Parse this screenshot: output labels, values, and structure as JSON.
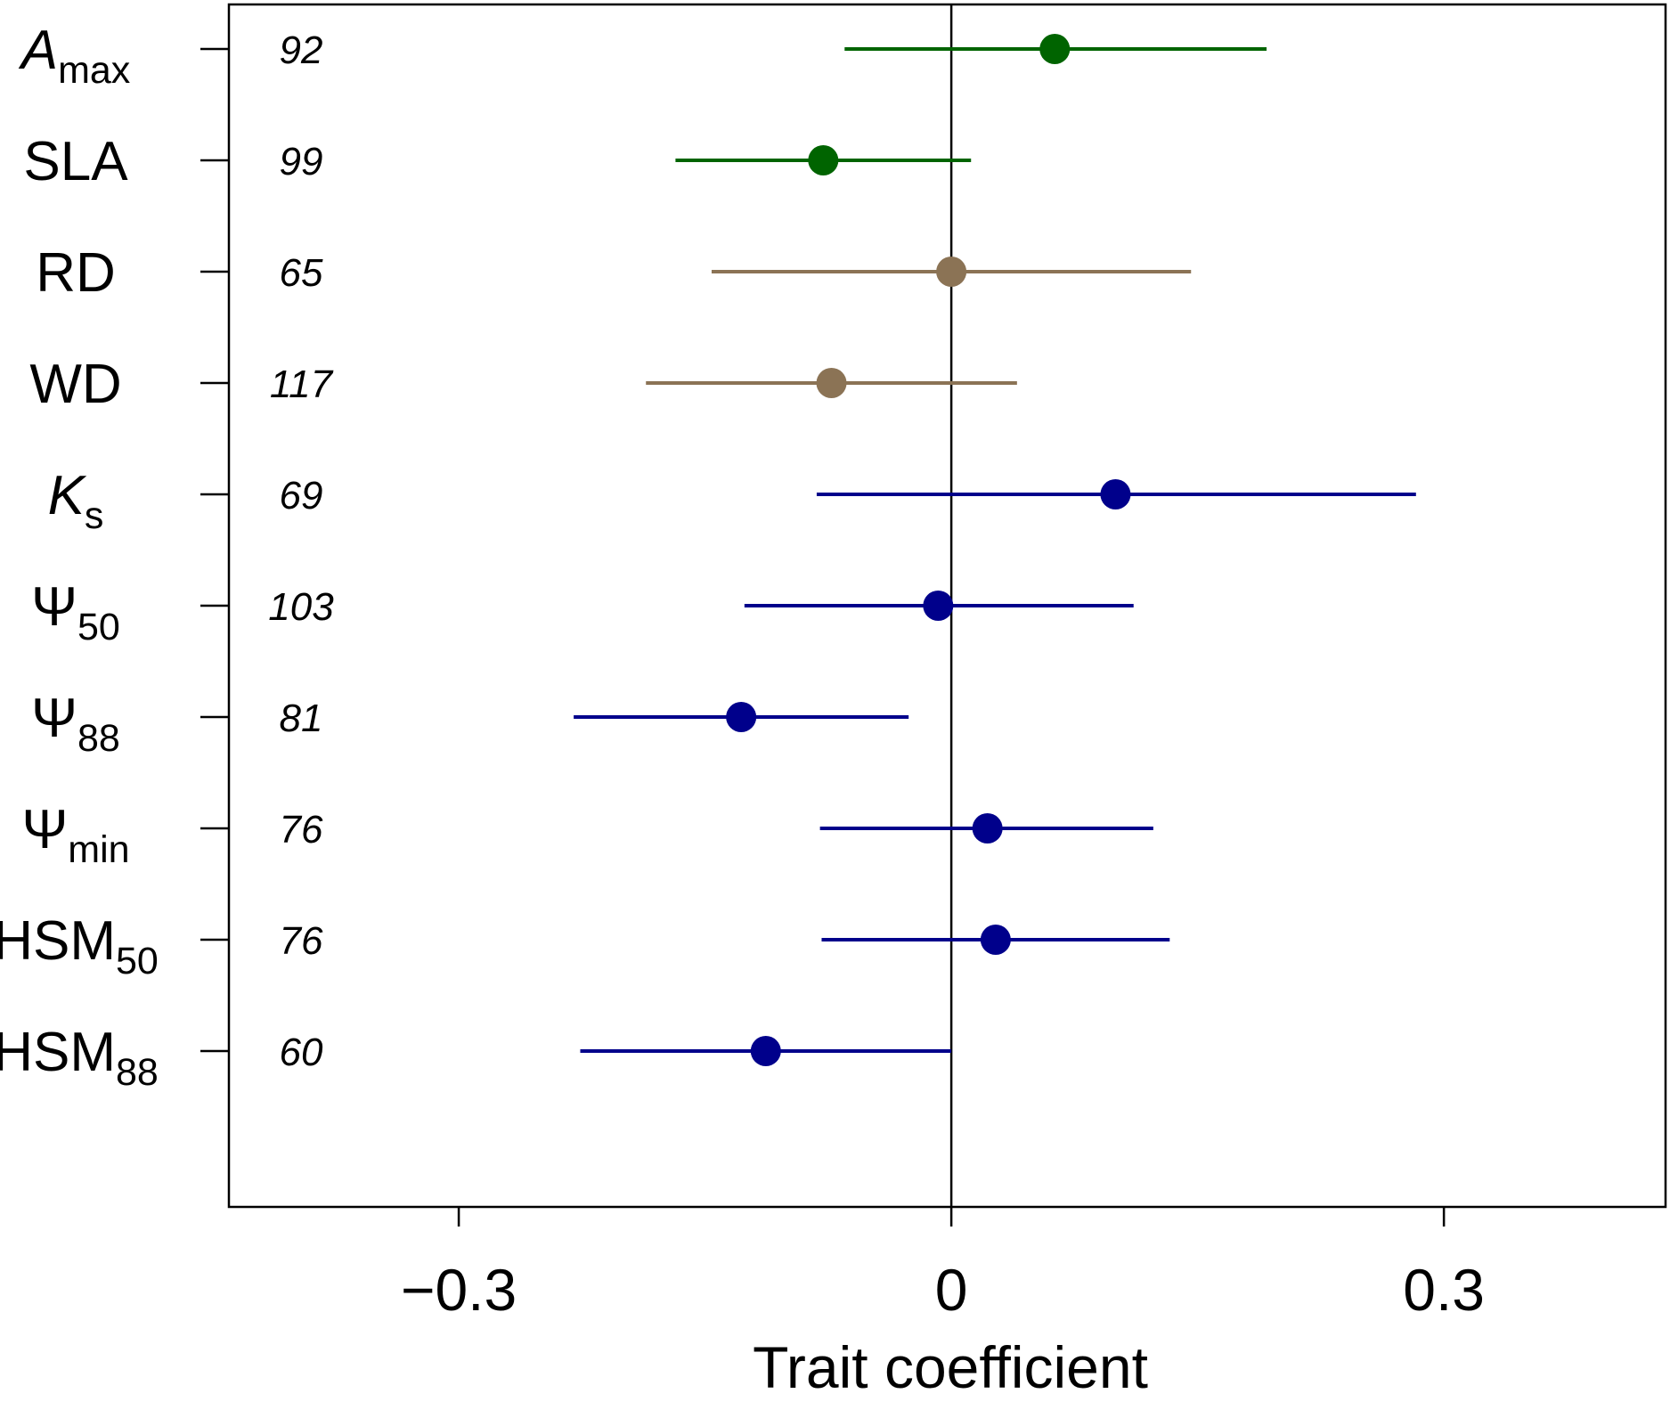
{
  "chart_data": {
    "type": "forest",
    "xlabel": "Trait coefficient",
    "xlim": [
      -0.44,
      0.435
    ],
    "xticks": [
      -0.3,
      0,
      0.3
    ],
    "xtick_labels": [
      "−0.3",
      "0",
      "0.3"
    ],
    "reference_line": 0,
    "grid": false,
    "legend": "none",
    "rows": [
      {
        "trait_main": "A",
        "trait_sub": "max",
        "italic_main": true,
        "n": "92",
        "estimate": 0.063,
        "lower": -0.065,
        "upper": 0.192,
        "color": "#006400"
      },
      {
        "trait_main": "SLA",
        "trait_sub": "",
        "italic_main": false,
        "n": "99",
        "estimate": -0.078,
        "lower": -0.168,
        "upper": 0.012,
        "color": "#006400"
      },
      {
        "trait_main": "RD",
        "trait_sub": "",
        "italic_main": false,
        "n": "65",
        "estimate": 0.0,
        "lower": -0.146,
        "upper": 0.146,
        "color": "#8B7355"
      },
      {
        "trait_main": "WD",
        "trait_sub": "",
        "italic_main": false,
        "n": "117",
        "estimate": -0.073,
        "lower": -0.186,
        "upper": 0.04,
        "color": "#8B7355"
      },
      {
        "trait_main": "K",
        "trait_sub": "s",
        "italic_main": true,
        "n": "69",
        "estimate": 0.1,
        "lower": -0.082,
        "upper": 0.283,
        "color": "#00008B"
      },
      {
        "trait_main": "Ψ",
        "trait_sub": "50",
        "italic_main": false,
        "n": "103",
        "estimate": -0.008,
        "lower": -0.126,
        "upper": 0.111,
        "color": "#00008B"
      },
      {
        "trait_main": "Ψ",
        "trait_sub": "88",
        "italic_main": false,
        "n": "81",
        "estimate": -0.128,
        "lower": -0.23,
        "upper": -0.026,
        "color": "#00008B"
      },
      {
        "trait_main": "Ψ",
        "trait_sub": "min",
        "italic_main": false,
        "n": "76",
        "estimate": 0.022,
        "lower": -0.08,
        "upper": 0.123,
        "color": "#00008B"
      },
      {
        "trait_main": "HSM",
        "trait_sub": "50",
        "italic_main": false,
        "n": "76",
        "estimate": 0.027,
        "lower": -0.079,
        "upper": 0.133,
        "color": "#00008B"
      },
      {
        "trait_main": "HSM",
        "trait_sub": "88",
        "italic_main": false,
        "n": "60",
        "estimate": -0.113,
        "lower": -0.226,
        "upper": 0.0,
        "color": "#00008B"
      }
    ]
  }
}
